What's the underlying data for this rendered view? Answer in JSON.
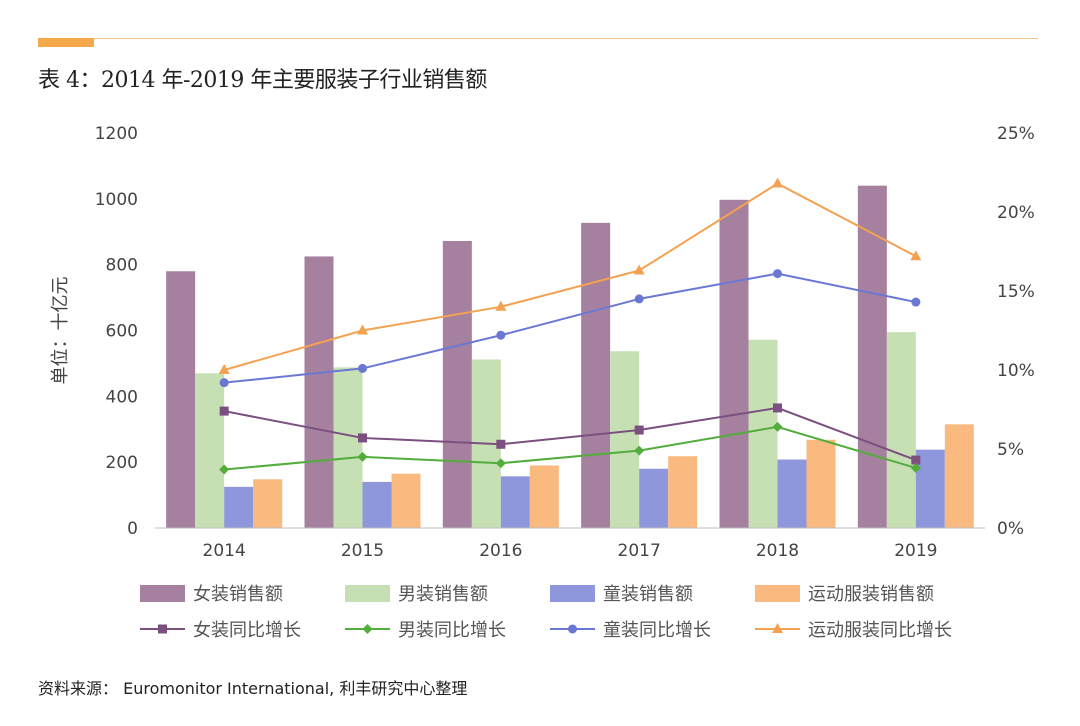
{
  "header": {
    "title": "表 4：2014 年-2019 年主要服装子行业销售额"
  },
  "footer": {
    "source": "资料来源： Euromonitor International, 利丰研究中心整理"
  },
  "chart_data": {
    "type": "bar",
    "categories": [
      "2014",
      "2015",
      "2016",
      "2017",
      "2018",
      "2019"
    ],
    "ylabel": "单位：十亿元",
    "ylim": [
      0,
      1200
    ],
    "yticks": [
      "0",
      "200",
      "400",
      "600",
      "800",
      "1000",
      "1200"
    ],
    "y2lim": [
      0,
      0.25
    ],
    "y2ticks": [
      "0%",
      "5%",
      "10%",
      "15%",
      "20%",
      "25%"
    ],
    "grid": false,
    "legend_position": "bottom",
    "bar_series": [
      {
        "name": "女装销售额",
        "color": "#a5809f",
        "values": [
          780,
          825,
          872,
          927,
          997,
          1040
        ]
      },
      {
        "name": "男装销售额",
        "color": "#c6e0b4",
        "values": [
          470,
          488,
          512,
          537,
          572,
          595
        ]
      },
      {
        "name": "童装销售额",
        "color": "#8e97db",
        "values": [
          125,
          140,
          157,
          180,
          208,
          238
        ]
      },
      {
        "name": "运动服装销售额",
        "color": "#f9b97f",
        "values": [
          148,
          165,
          190,
          218,
          268,
          315
        ]
      }
    ],
    "line_series": [
      {
        "name": "女装同比增长",
        "color": "#7b4f80",
        "marker": "square",
        "values": [
          0.074,
          0.057,
          0.053,
          0.062,
          0.076,
          0.043
        ]
      },
      {
        "name": "男装同比增长",
        "color": "#52ad3d",
        "marker": "diamond",
        "values": [
          0.037,
          0.045,
          0.041,
          0.049,
          0.064,
          0.038
        ]
      },
      {
        "name": "童装同比增长",
        "color": "#6a78d4",
        "marker": "circle",
        "values": [
          0.092,
          0.101,
          0.122,
          0.145,
          0.161,
          0.143
        ]
      },
      {
        "name": "运动服装同比增长",
        "color": "#f4a252",
        "marker": "triangle",
        "values": [
          0.1,
          0.125,
          0.14,
          0.163,
          0.218,
          0.172
        ]
      }
    ]
  }
}
